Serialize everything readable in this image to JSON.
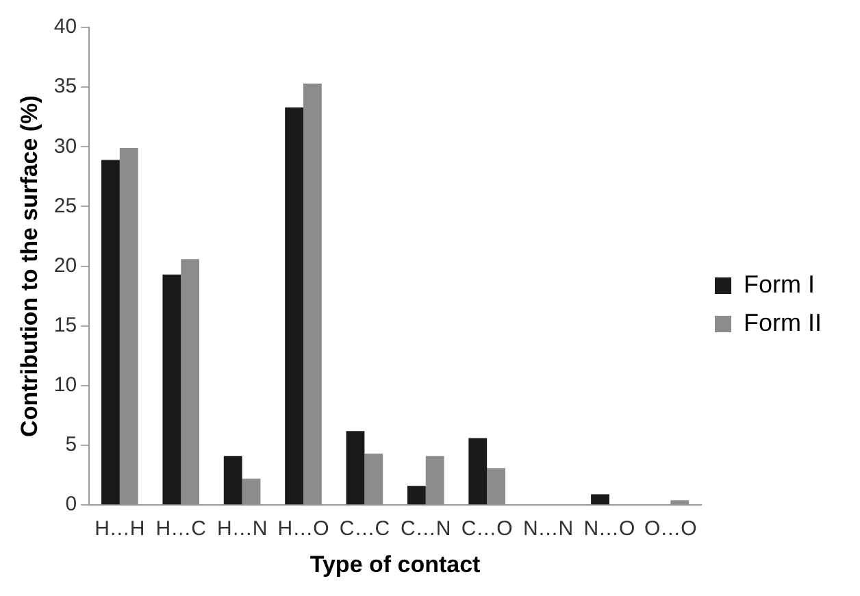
{
  "chart_data": {
    "type": "bar",
    "xlabel": "Type of contact",
    "ylabel": "Contribution to the surface (%)",
    "categories": [
      "H…H",
      "H…C",
      "H…N",
      "H…O",
      "C…C",
      "C…N",
      "C…O",
      "N…N",
      "N…O",
      "O…O"
    ],
    "series": [
      {
        "name": "Form I",
        "color": "#1a1a1a",
        "values": [
          28.9,
          19.3,
          4.1,
          33.3,
          6.2,
          1.6,
          5.6,
          0,
          0.9,
          0
        ]
      },
      {
        "name": "Form II",
        "color": "#8c8c8c",
        "values": [
          29.9,
          20.6,
          2.2,
          35.3,
          4.3,
          4.1,
          3.1,
          0,
          0,
          0.4
        ]
      }
    ],
    "ylim": [
      0,
      40
    ],
    "yticks": [
      0,
      5,
      10,
      15,
      20,
      25,
      30,
      35,
      40
    ],
    "grid": false,
    "legend": "right"
  }
}
